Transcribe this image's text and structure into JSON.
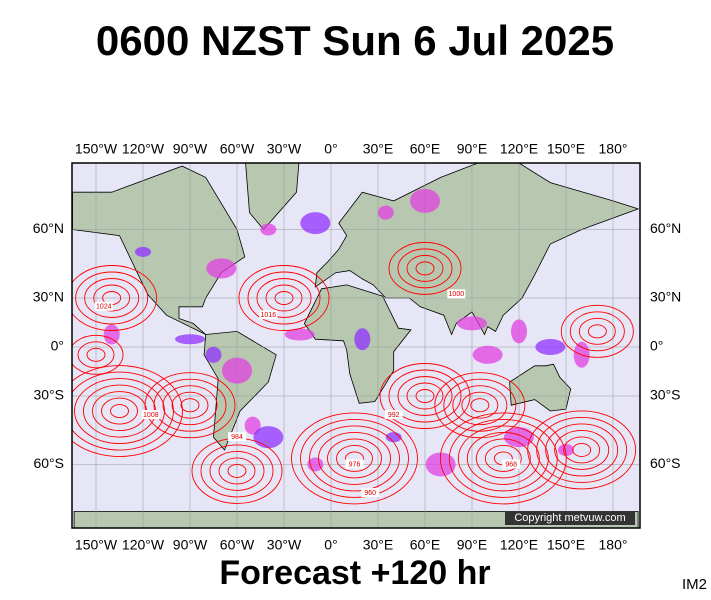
{
  "header": {
    "title": "0600 NZST Sun 6 Jul 2025"
  },
  "map": {
    "lon_labels": [
      "150°W",
      "120°W",
      "90°W",
      "60°W",
      "30°W",
      "0°",
      "30°E",
      "60°E",
      "90°E",
      "120°E",
      "150°E",
      "180°"
    ],
    "lat_labels": [
      "60°N",
      "30°N",
      "0°",
      "30°S",
      "60°S"
    ],
    "isobar_labels": [
      "1024",
      "1016",
      "1008",
      "1000",
      "992",
      "984",
      "976",
      "968",
      "960"
    ],
    "copyright": "Copyright metvuw.com"
  },
  "footer": {
    "title": "Forecast +120 hr",
    "image_id": "IM2"
  }
}
